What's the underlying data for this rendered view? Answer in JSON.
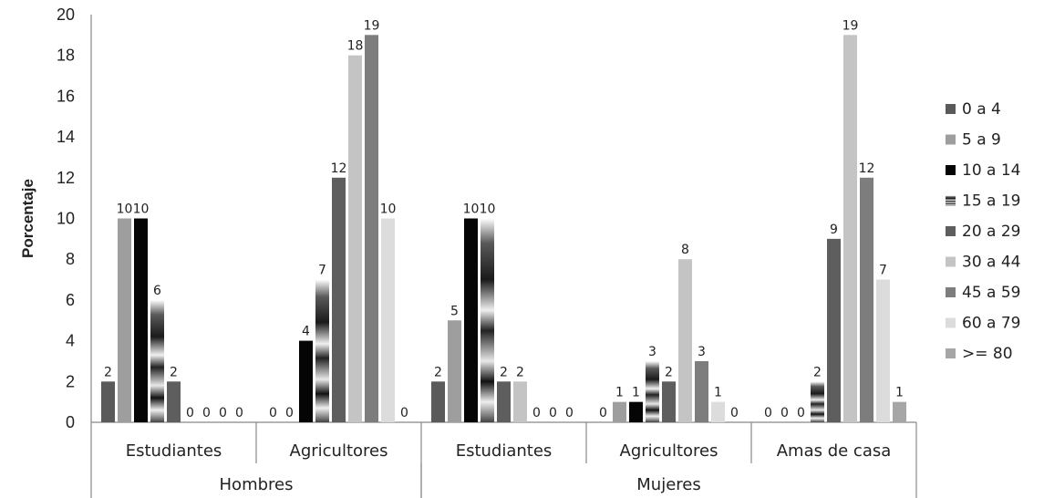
{
  "chart_data": {
    "type": "bar",
    "ylabel": "Porcentaje",
    "ylim": [
      0,
      20
    ],
    "yticks": [
      0,
      2,
      4,
      6,
      8,
      10,
      12,
      14,
      16,
      18,
      20
    ],
    "legend_position": "right",
    "categories": [
      {
        "group": "Hombres",
        "label": "Estudiantes"
      },
      {
        "group": "Hombres",
        "label": "Agricultores"
      },
      {
        "group": "Mujeres",
        "label": "Estudiantes"
      },
      {
        "group": "Mujeres",
        "label": "Agricultores"
      },
      {
        "group": "Mujeres",
        "label": "Amas de casa"
      }
    ],
    "groups": [
      "Hombres",
      "Mujeres"
    ],
    "series": [
      {
        "name": "0 a 4",
        "color": "#5a5a5a",
        "values": [
          2,
          0,
          2,
          0,
          0
        ]
      },
      {
        "name": "5 a 9",
        "color": "#9e9e9e",
        "values": [
          10,
          0,
          5,
          1,
          0
        ]
      },
      {
        "name": "10 a 14",
        "color": "#050505",
        "values": [
          10,
          4,
          10,
          1,
          0
        ]
      },
      {
        "name": "15 a 19",
        "color": "gradient",
        "values": [
          6,
          7,
          10,
          3,
          2
        ]
      },
      {
        "name": "20 a 29",
        "color": "#5e5e5e",
        "values": [
          2,
          12,
          2,
          2,
          9
        ]
      },
      {
        "name": "30 a 44",
        "color": "#c4c4c4",
        "values": [
          0,
          18,
          2,
          8,
          19
        ]
      },
      {
        "name": "45 a 59",
        "color": "#7d7d7d",
        "values": [
          0,
          19,
          0,
          3,
          12
        ]
      },
      {
        "name": "60 a 79",
        "color": "#dcdcdc",
        "values": [
          0,
          10,
          0,
          1,
          7
        ]
      },
      {
        "name": ">= 80",
        "color": "#a6a6a6",
        "values": [
          0,
          0,
          0,
          0,
          1
        ]
      }
    ]
  }
}
